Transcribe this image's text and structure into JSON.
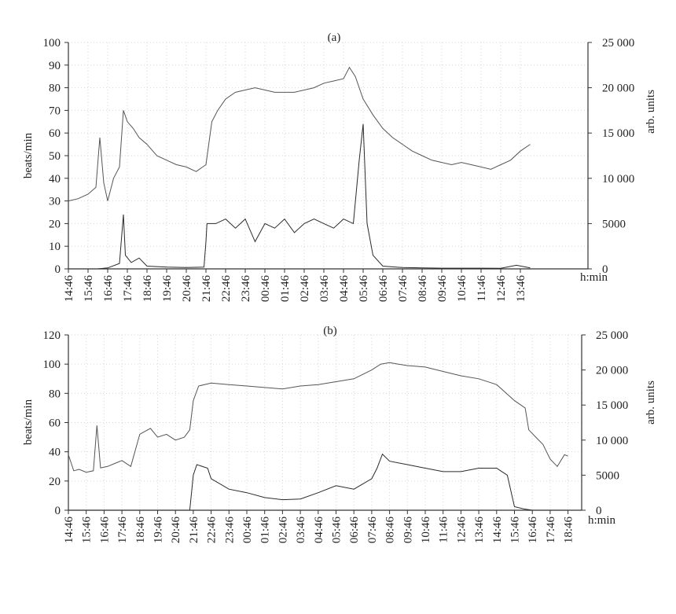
{
  "chart_data": [
    {
      "type": "line",
      "title": "(a)",
      "ylabel": "beats/min",
      "y2label": "arb. units",
      "xunit": "h:min",
      "ylim": [
        0,
        100
      ],
      "y2lim": [
        0,
        25000
      ],
      "yticks": [
        0,
        10,
        20,
        30,
        40,
        50,
        60,
        70,
        80,
        90,
        100
      ],
      "y2ticks": [
        0,
        5000,
        10000,
        15000,
        20000,
        25000
      ],
      "y2ticklabels": [
        "0",
        "5000",
        "10 000",
        "15 000",
        "20 000",
        "25 000"
      ],
      "x_tick_labels": [
        "14:46",
        "15:46",
        "16:46",
        "17:46",
        "18:46",
        "19:46",
        "20:46",
        "21:46",
        "22:46",
        "23:46",
        "00:46",
        "01:46",
        "02:46",
        "03:46",
        "04:46",
        "05:46",
        "06:46",
        "07:46",
        "08:46",
        "09:46",
        "10:46",
        "11:46",
        "12:46",
        "13:46"
      ],
      "grid": true,
      "series": [
        {
          "axis": "left",
          "hours": [
            0,
            0.5,
            1,
            1.4,
            1.6,
            1.8,
            2.0,
            2.3,
            2.6,
            2.8,
            3.0,
            3.3,
            3.6,
            4.0,
            4.5,
            5.0,
            5.5,
            6.0,
            6.5,
            7.0,
            7.3,
            7.6,
            8.0,
            8.5,
            9.0,
            9.5,
            10.0,
            10.5,
            11.0,
            11.5,
            12.0,
            12.5,
            13.0,
            13.5,
            14.0,
            14.3,
            14.6,
            15.0,
            15.5,
            16.0,
            16.5,
            17.0,
            17.5,
            18.0,
            18.5,
            19.0,
            19.5,
            20.0,
            20.5,
            21.0,
            21.5,
            22.0,
            22.5,
            23.0,
            23.5
          ],
          "values": [
            30,
            31,
            33,
            36,
            58,
            38,
            30,
            40,
            45,
            70,
            65,
            62,
            58,
            55,
            50,
            48,
            46,
            45,
            43,
            46,
            65,
            70,
            75,
            78,
            79,
            80,
            79,
            78,
            78,
            78,
            79,
            80,
            82,
            83,
            84,
            89,
            85,
            75,
            68,
            62,
            58,
            55,
            52,
            50,
            48,
            47,
            46,
            47,
            46,
            45,
            44,
            46,
            48,
            52,
            55
          ]
        },
        {
          "axis": "right",
          "hours": [
            0,
            1,
            1.5,
            2,
            2.6,
            2.8,
            2.9,
            3.2,
            3.6,
            4,
            5,
            6,
            6.9,
            7.0,
            7.05,
            7.5,
            8,
            8.5,
            9,
            9.5,
            10,
            10.5,
            11,
            11.5,
            12,
            12.5,
            13,
            13.5,
            14,
            14.5,
            14.8,
            15.0,
            15.2,
            15.5,
            16,
            17,
            18,
            19,
            20,
            21,
            22,
            22.8,
            23.5
          ],
          "values": [
            0,
            0,
            0,
            100,
            600,
            6000,
            1500,
            700,
            1200,
            300,
            200,
            150,
            200,
            3000,
            5000,
            5000,
            5500,
            4500,
            5500,
            3000,
            5000,
            4500,
            5500,
            4000,
            5000,
            5500,
            5000,
            4500,
            5500,
            5000,
            12000,
            16000,
            5000,
            1500,
            300,
            150,
            100,
            80,
            80,
            80,
            60,
            400,
            100
          ]
        }
      ]
    },
    {
      "type": "line",
      "title": "(b)",
      "ylabel": "beats/min",
      "y2label": "arb. units",
      "xunit": "h:min",
      "ylim": [
        0,
        120
      ],
      "y2lim": [
        0,
        25000
      ],
      "yticks": [
        0,
        20,
        40,
        60,
        80,
        100,
        120
      ],
      "y2ticks": [
        0,
        5000,
        10000,
        15000,
        20000,
        25000
      ],
      "y2ticklabels": [
        "0",
        "5000",
        "10 000",
        "15 000",
        "20 000",
        "25 000"
      ],
      "x_tick_labels": [
        "14:46",
        "15:46",
        "16:46",
        "17:46",
        "18:46",
        "19:46",
        "20:46",
        "21:46",
        "22:46",
        "23:46",
        "00:46",
        "01:46",
        "02:46",
        "03:46",
        "04:46",
        "05:46",
        "06:46",
        "07:46",
        "08:46",
        "09:46",
        "10:46",
        "11:46",
        "12:46",
        "13:46",
        "14:46",
        "15:46",
        "16:46",
        "17:46",
        "18:46"
      ],
      "grid": true,
      "series": [
        {
          "axis": "left",
          "hours": [
            0,
            0.3,
            0.6,
            1.0,
            1.4,
            1.6,
            1.8,
            2.2,
            2.6,
            3.0,
            3.5,
            4.0,
            4.3,
            4.6,
            5.0,
            5.5,
            6.0,
            6.5,
            6.8,
            7.0,
            7.3,
            8,
            9,
            10,
            11,
            12,
            13,
            14,
            15,
            16,
            16.5,
            17,
            17.5,
            18,
            18.5,
            19,
            20,
            21,
            22,
            23,
            24,
            25,
            25.6,
            25.8,
            26.2,
            26.6,
            27.0,
            27.4,
            27.8,
            28.0
          ],
          "values": [
            38,
            27,
            28,
            26,
            27,
            58,
            29,
            30,
            32,
            34,
            30,
            52,
            54,
            56,
            50,
            52,
            48,
            50,
            55,
            75,
            85,
            87,
            86,
            85,
            84,
            83,
            85,
            86,
            88,
            90,
            93,
            96,
            100,
            101,
            100,
            99,
            98,
            95,
            92,
            90,
            86,
            75,
            70,
            55,
            50,
            45,
            35,
            30,
            38,
            37
          ]
        },
        {
          "axis": "right",
          "hours": [
            0,
            3,
            6,
            6.8,
            7.0,
            7.2,
            7.8,
            8,
            9,
            10,
            11,
            12,
            13,
            14,
            15,
            16,
            17,
            17.3,
            17.6,
            18,
            19,
            20,
            21,
            22,
            23,
            24,
            24.6,
            25,
            25.5,
            26,
            26.5,
            27,
            28
          ],
          "values": [
            0,
            0,
            0,
            0,
            5000,
            6500,
            6000,
            4500,
            3000,
            2500,
            1800,
            1500,
            1600,
            2500,
            3500,
            3000,
            4500,
            6000,
            8000,
            7000,
            6500,
            6000,
            5500,
            5500,
            6000,
            6000,
            5000,
            500,
            200,
            0,
            0,
            0,
            0
          ]
        }
      ]
    }
  ]
}
